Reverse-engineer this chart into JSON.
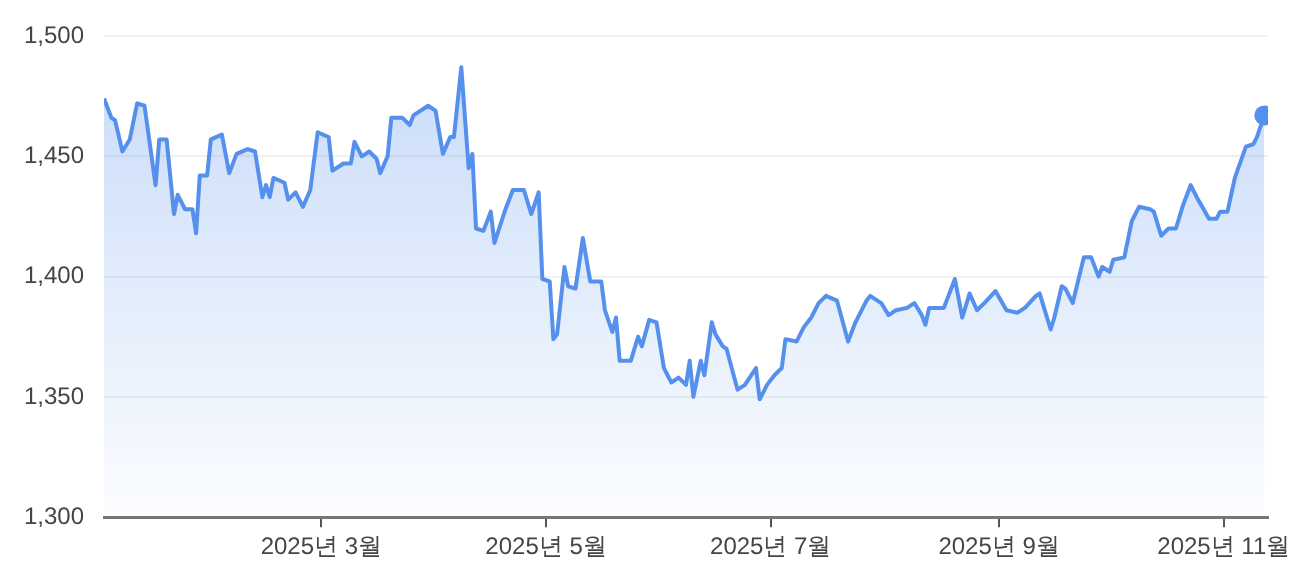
{
  "chart_data": {
    "type": "area",
    "x": [
      "2025-01-01",
      "2025-01-03",
      "2025-01-04",
      "2025-01-06",
      "2025-01-08",
      "2025-01-10",
      "2025-01-12",
      "2025-01-13",
      "2025-01-15",
      "2025-01-16",
      "2025-01-18",
      "2025-01-20",
      "2025-01-21",
      "2025-01-23",
      "2025-01-25",
      "2025-01-26",
      "2025-01-27",
      "2025-01-29",
      "2025-01-30",
      "2025-02-02",
      "2025-02-04",
      "2025-02-06",
      "2025-02-09",
      "2025-02-11",
      "2025-02-13",
      "2025-02-14",
      "2025-02-15",
      "2025-02-16",
      "2025-02-19",
      "2025-02-20",
      "2025-02-22",
      "2025-02-24",
      "2025-02-26",
      "2025-02-28",
      "2025-03-03",
      "2025-03-04",
      "2025-03-07",
      "2025-03-09",
      "2025-03-10",
      "2025-03-12",
      "2025-03-14",
      "2025-03-16",
      "2025-03-17",
      "2025-03-19",
      "2025-03-20",
      "2025-03-23",
      "2025-03-25",
      "2025-03-26",
      "2025-03-30",
      "2025-04-01",
      "2025-04-03",
      "2025-04-05",
      "2025-04-06",
      "2025-04-08",
      "2025-04-10",
      "2025-04-11",
      "2025-04-12",
      "2025-04-14",
      "2025-04-16",
      "2025-04-17",
      "2025-04-20",
      "2025-04-22",
      "2025-04-25",
      "2025-04-27",
      "2025-04-29",
      "2025-04-30",
      "2025-05-02",
      "2025-05-03",
      "2025-05-04",
      "2025-05-06",
      "2025-05-07",
      "2025-05-09",
      "2025-05-11",
      "2025-05-13",
      "2025-05-16",
      "2025-05-17",
      "2025-05-19",
      "2025-05-20",
      "2025-05-21",
      "2025-05-24",
      "2025-05-26",
      "2025-05-27",
      "2025-05-29",
      "2025-05-31",
      "2025-06-02",
      "2025-06-04",
      "2025-06-06",
      "2025-06-08",
      "2025-06-09",
      "2025-06-10",
      "2025-06-12",
      "2025-06-13",
      "2025-06-15",
      "2025-06-16",
      "2025-06-18",
      "2025-06-19",
      "2025-06-22",
      "2025-06-24",
      "2025-06-27",
      "2025-06-28",
      "2025-06-30",
      "2025-07-02",
      "2025-07-04",
      "2025-07-05",
      "2025-07-08",
      "2025-07-10",
      "2025-07-12",
      "2025-07-14",
      "2025-07-16",
      "2025-07-19",
      "2025-07-22",
      "2025-07-24",
      "2025-07-27",
      "2025-07-28",
      "2025-07-31",
      "2025-08-02",
      "2025-08-04",
      "2025-08-07",
      "2025-08-09",
      "2025-08-11",
      "2025-08-12",
      "2025-08-13",
      "2025-08-17",
      "2025-08-20",
      "2025-08-22",
      "2025-08-24",
      "2025-08-26",
      "2025-08-28",
      "2025-08-31",
      "2025-09-03",
      "2025-09-06",
      "2025-09-08",
      "2025-09-11",
      "2025-09-12",
      "2025-09-15",
      "2025-09-16",
      "2025-09-18",
      "2025-09-19",
      "2025-09-21",
      "2025-09-24",
      "2025-09-26",
      "2025-09-28",
      "2025-09-29",
      "2025-10-01",
      "2025-10-02",
      "2025-10-05",
      "2025-10-07",
      "2025-10-09",
      "2025-10-12",
      "2025-10-13",
      "2025-10-15",
      "2025-10-17",
      "2025-10-19",
      "2025-10-21",
      "2025-10-23",
      "2025-10-25",
      "2025-10-28",
      "2025-10-30",
      "2025-10-31",
      "2025-11-02",
      "2025-11-04",
      "2025-11-07",
      "2025-11-09",
      "2025-11-10",
      "2025-11-12"
    ],
    "series": [
      {
        "color": "#5590ec",
        "values": [
          1474,
          1466,
          1465,
          1452,
          1457,
          1472,
          1471,
          1460,
          1438,
          1457,
          1457,
          1426,
          1434,
          1428,
          1428,
          1418,
          1442,
          1442,
          1457,
          1459,
          1443,
          1451,
          1453,
          1452,
          1433,
          1438,
          1433,
          1441,
          1439,
          1432,
          1435,
          1429,
          1436,
          1460,
          1458,
          1444,
          1447,
          1447,
          1456,
          1450,
          1452,
          1449,
          1443,
          1450,
          1466,
          1466,
          1463,
          1467,
          1471,
          1469,
          1451,
          1458,
          1458,
          1487,
          1445,
          1451,
          1420,
          1419,
          1427,
          1414,
          1428,
          1436,
          1436,
          1426,
          1435,
          1399,
          1398,
          1374,
          1376,
          1404,
          1396,
          1395,
          1416,
          1398,
          1398,
          1386,
          1377,
          1383,
          1365,
          1365,
          1375,
          1371,
          1382,
          1381,
          1362,
          1356,
          1358,
          1355,
          1365,
          1350,
          1365,
          1359,
          1381,
          1376,
          1371,
          1370,
          1353,
          1355,
          1362,
          1349,
          1355,
          1359,
          1362,
          1374,
          1373,
          1379,
          1383,
          1389,
          1392,
          1390,
          1373,
          1381,
          1390,
          1392,
          1389,
          1384,
          1386,
          1387,
          1389,
          1384,
          1380,
          1387,
          1387,
          1399,
          1383,
          1393,
          1386,
          1389,
          1394,
          1386,
          1385,
          1387,
          1392,
          1393,
          1378,
          1383,
          1396,
          1395,
          1389,
          1408,
          1408,
          1400,
          1404,
          1402,
          1407,
          1408,
          1423,
          1429,
          1428,
          1427,
          1417,
          1420,
          1420,
          1430,
          1438,
          1432,
          1424,
          1424,
          1427,
          1427,
          1441,
          1454,
          1455,
          1458,
          1467
        ]
      }
    ],
    "xlim": [
      "2025-01-01",
      "2025-11-13"
    ],
    "xticks": [
      {
        "value": "2025-03-01",
        "label": "2025년 3월"
      },
      {
        "value": "2025-05-01",
        "label": "2025년 5월"
      },
      {
        "value": "2025-07-01",
        "label": "2025년 7월"
      },
      {
        "value": "2025-09-01",
        "label": "2025년 9월"
      },
      {
        "value": "2025-11-01",
        "label": "2025년 11월"
      }
    ],
    "ylim": [
      1300,
      1500
    ],
    "yticks": [
      {
        "value": 1300,
        "label": "1,300"
      },
      {
        "value": 1350,
        "label": "1,350"
      },
      {
        "value": 1400,
        "label": "1,400"
      },
      {
        "value": 1450,
        "label": "1,450"
      },
      {
        "value": 1500,
        "label": "1,500"
      }
    ],
    "grid": "y",
    "legend": false
  }
}
